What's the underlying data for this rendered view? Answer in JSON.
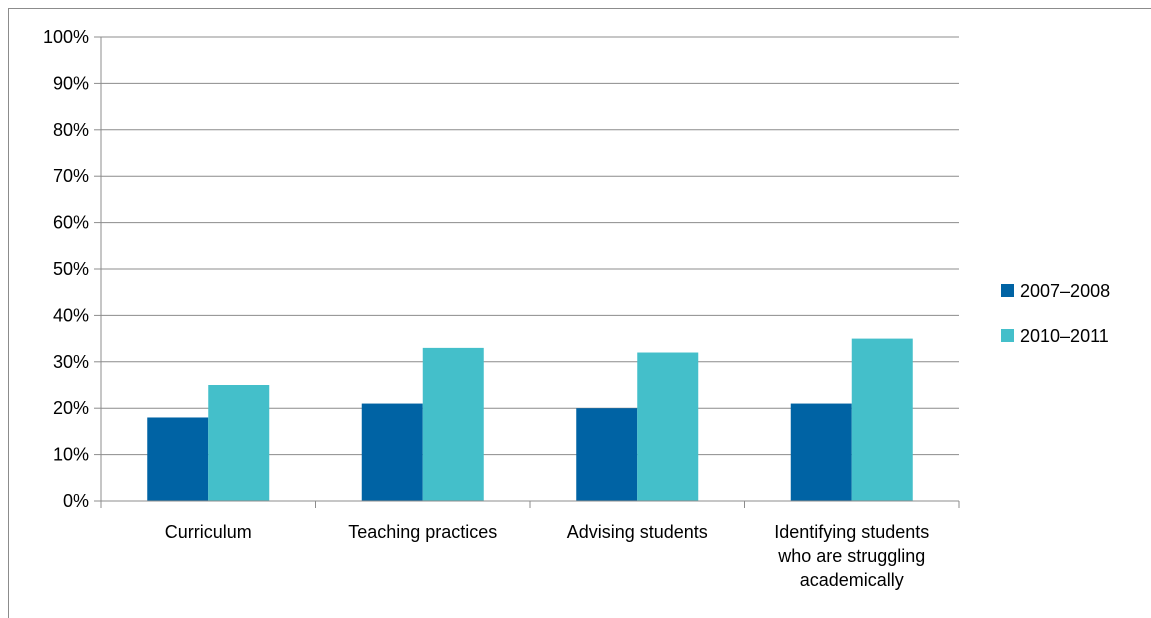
{
  "chart_data": {
    "type": "bar",
    "title": "",
    "xlabel": "",
    "ylabel": "",
    "categories": [
      "Curriculum",
      "Teaching practices",
      "Advising students",
      "Identifying students who are struggling academically"
    ],
    "category_lines": [
      [
        "Curriculum"
      ],
      [
        "Teaching practices"
      ],
      [
        "Advising students"
      ],
      [
        "Identifying students",
        "who are struggling",
        "academically"
      ]
    ],
    "series": [
      {
        "name": "2007–2008",
        "color": "#0063A4",
        "values": [
          18,
          21,
          20,
          21
        ]
      },
      {
        "name": "2010–2011",
        "color": "#44BFCA",
        "values": [
          25,
          33,
          32,
          35
        ]
      }
    ],
    "ylim": [
      0,
      100
    ],
    "yticks": [
      0,
      10,
      20,
      30,
      40,
      50,
      60,
      70,
      80,
      90,
      100
    ],
    "ytick_labels": [
      "0%",
      "10%",
      "20%",
      "30%",
      "40%",
      "50%",
      "60%",
      "70%",
      "80%",
      "90%",
      "100%"
    ],
    "grid": true,
    "legend_position": "right"
  }
}
